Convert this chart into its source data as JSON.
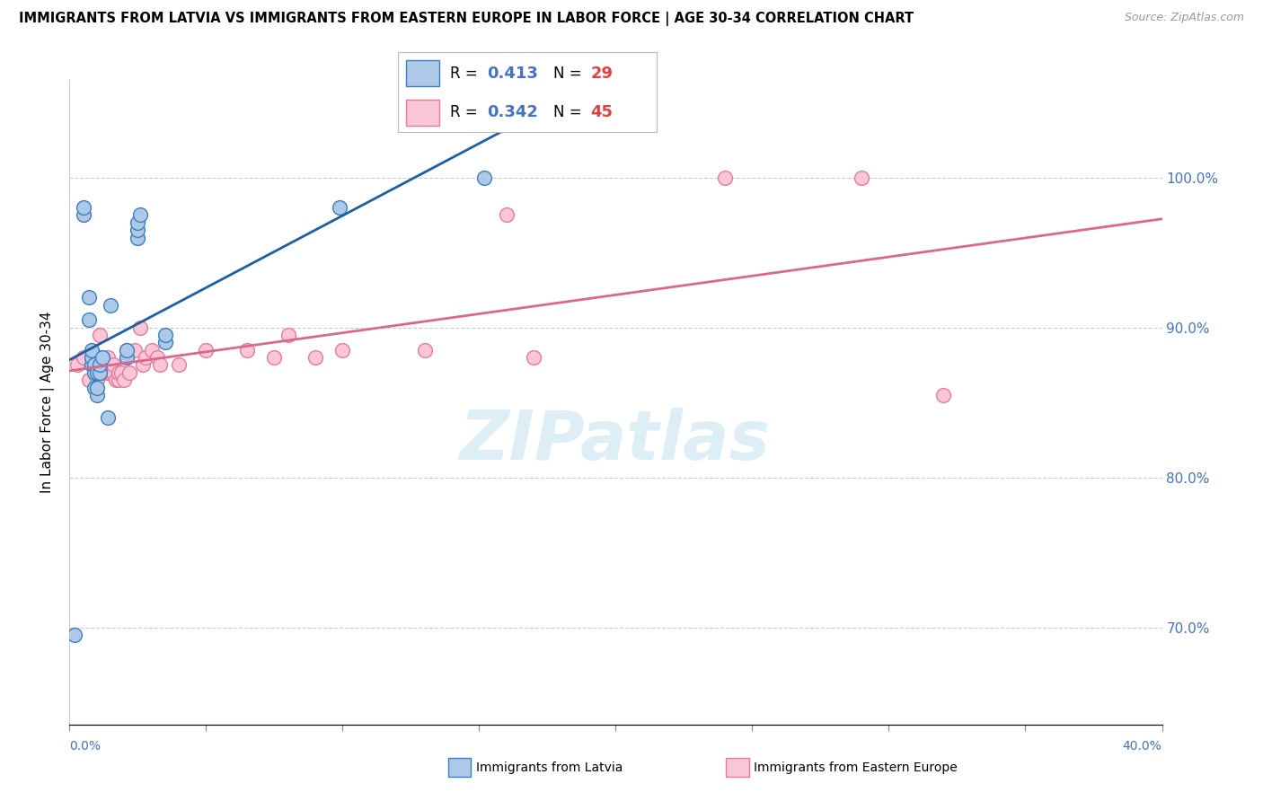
{
  "title": "IMMIGRANTS FROM LATVIA VS IMMIGRANTS FROM EASTERN EUROPE IN LABOR FORCE | AGE 30-34 CORRELATION CHART",
  "source": "Source: ZipAtlas.com",
  "ylabel": "In Labor Force | Age 30-34",
  "xlim": [
    0.0,
    0.4
  ],
  "ylim": [
    0.635,
    1.065
  ],
  "right_yticks": [
    0.7,
    0.8,
    0.9,
    1.0
  ],
  "right_yticklabels": [
    "70.0%",
    "80.0%",
    "90.0%",
    "100.0%"
  ],
  "R_latvia": "0.413",
  "N_latvia": "29",
  "R_eastern": "0.342",
  "N_eastern": "45",
  "color_latvia_fill": "#aec9e8",
  "color_latvia_edge": "#3a7fc1",
  "color_eastern_fill": "#f9c6d5",
  "color_eastern_edge": "#e87aa0",
  "color_latvia_line": "#1c5fa3",
  "color_eastern_line": "#d9688a",
  "watermark_color": "#d0e8f5",
  "background_color": "#ffffff",
  "grid_color": "#cccccc",
  "legend_color_R": "#4472c4",
  "legend_color_N": "#e84040",
  "latvia_x": [
    0.002,
    0.005,
    0.005,
    0.007,
    0.007,
    0.008,
    0.008,
    0.008,
    0.009,
    0.009,
    0.009,
    0.01,
    0.01,
    0.01,
    0.011,
    0.011,
    0.012,
    0.014,
    0.015,
    0.021,
    0.021,
    0.025,
    0.025,
    0.025,
    0.026,
    0.035,
    0.035,
    0.099,
    0.152
  ],
  "latvia_y": [
    0.695,
    0.975,
    0.98,
    0.905,
    0.92,
    0.875,
    0.88,
    0.885,
    0.86,
    0.87,
    0.875,
    0.855,
    0.86,
    0.87,
    0.87,
    0.875,
    0.88,
    0.84,
    0.915,
    0.88,
    0.885,
    0.96,
    0.965,
    0.97,
    0.975,
    0.89,
    0.895,
    0.98,
    1.0
  ],
  "eastern_x": [
    0.003,
    0.005,
    0.007,
    0.008,
    0.009,
    0.01,
    0.01,
    0.011,
    0.011,
    0.012,
    0.012,
    0.013,
    0.013,
    0.014,
    0.014,
    0.015,
    0.016,
    0.016,
    0.017,
    0.018,
    0.018,
    0.019,
    0.02,
    0.021,
    0.022,
    0.024,
    0.026,
    0.027,
    0.028,
    0.03,
    0.032,
    0.033,
    0.04,
    0.05,
    0.065,
    0.075,
    0.08,
    0.09,
    0.1,
    0.13,
    0.16,
    0.17,
    0.24,
    0.29,
    0.32
  ],
  "eastern_y": [
    0.875,
    0.88,
    0.865,
    0.88,
    0.88,
    0.865,
    0.87,
    0.88,
    0.895,
    0.87,
    0.875,
    0.87,
    0.875,
    0.87,
    0.88,
    0.87,
    0.87,
    0.875,
    0.865,
    0.865,
    0.87,
    0.87,
    0.865,
    0.885,
    0.87,
    0.885,
    0.9,
    0.875,
    0.88,
    0.885,
    0.88,
    0.875,
    0.875,
    0.885,
    0.885,
    0.88,
    0.895,
    0.88,
    0.885,
    0.885,
    0.975,
    0.88,
    1.0,
    1.0,
    0.855
  ]
}
